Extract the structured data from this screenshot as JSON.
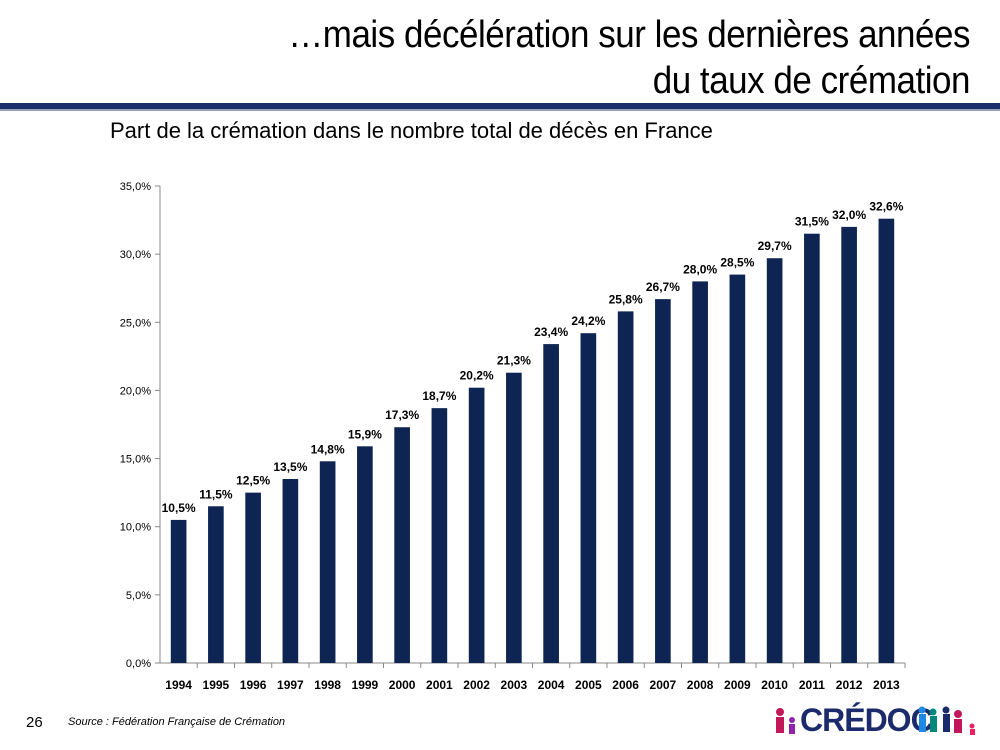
{
  "header": {
    "title_line1": "…mais décélération sur les dernières années",
    "title_line2": "du taux de crémation"
  },
  "chart_data": {
    "type": "bar",
    "title": "Part de la crémation dans le nombre total de décès en France",
    "categories": [
      "1994",
      "1995",
      "1996",
      "1997",
      "1998",
      "1999",
      "2000",
      "2001",
      "2002",
      "2003",
      "2004",
      "2005",
      "2006",
      "2007",
      "2008",
      "2009",
      "2010",
      "2011",
      "2012",
      "2013"
    ],
    "values": [
      10.5,
      11.5,
      12.5,
      13.5,
      14.8,
      15.9,
      17.3,
      18.7,
      20.2,
      21.3,
      23.4,
      24.2,
      25.8,
      26.7,
      28.0,
      28.5,
      29.7,
      31.5,
      32.0,
      32.6
    ],
    "data_labels": [
      "10,5%",
      "11,5%",
      "12,5%",
      "13,5%",
      "14,8%",
      "15,9%",
      "17,3%",
      "18,7%",
      "20,2%",
      "21,3%",
      "23,4%",
      "24,2%",
      "25,8%",
      "26,7%",
      "28,0%",
      "28,5%",
      "29,7%",
      "31,5%",
      "32,0%",
      "32,6%"
    ],
    "ylim": [
      0,
      35
    ],
    "yticks": [
      0,
      5,
      10,
      15,
      20,
      25,
      30,
      35
    ],
    "ytick_labels": [
      "0,0%",
      "5,0%",
      "10,0%",
      "15,0%",
      "20,0%",
      "25,0%",
      "30,0%",
      "35,0%"
    ],
    "grid": false,
    "bar_color": "#0e2452",
    "xlabel": "",
    "ylabel": ""
  },
  "footer": {
    "page_number": "26",
    "source": "Source : Fédération Française de Crémation",
    "logo_text": "CRÉDOC"
  }
}
